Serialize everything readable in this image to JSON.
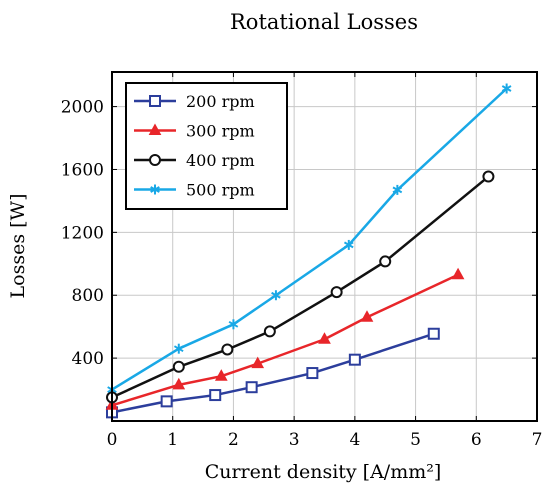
{
  "chart_data": {
    "type": "line",
    "title": "Rotational Losses",
    "xlabel": "Current density [A/mm²]",
    "ylabel": "Losses [W]",
    "xlim": [
      0,
      7
    ],
    "ylim": [
      0,
      2220
    ],
    "xticks": [
      0,
      1,
      2,
      3,
      4,
      5,
      6,
      7
    ],
    "yticks": [
      400,
      800,
      1200,
      1600,
      2000
    ],
    "grid": true,
    "legend_position": "top-left",
    "series": [
      {
        "name": "200 rpm",
        "color": "#2c3e9c",
        "marker": "square",
        "points": [
          [
            0,
            55
          ],
          [
            0.9,
            125
          ],
          [
            1.7,
            165
          ],
          [
            2.3,
            215
          ],
          [
            3.3,
            305
          ],
          [
            4.0,
            390
          ],
          [
            5.3,
            555
          ]
        ]
      },
      {
        "name": "300 rpm",
        "color": "#e8262a",
        "marker": "triangle",
        "points": [
          [
            0,
            100
          ],
          [
            1.1,
            230
          ],
          [
            1.8,
            285
          ],
          [
            2.4,
            365
          ],
          [
            3.5,
            520
          ],
          [
            4.2,
            660
          ],
          [
            5.7,
            930
          ]
        ]
      },
      {
        "name": "400 rpm",
        "color": "#111111",
        "marker": "circle",
        "points": [
          [
            0,
            150
          ],
          [
            1.1,
            345
          ],
          [
            1.9,
            455
          ],
          [
            2.6,
            570
          ],
          [
            3.7,
            820
          ],
          [
            4.5,
            1015
          ],
          [
            6.2,
            1555
          ]
        ]
      },
      {
        "name": "500 rpm",
        "color": "#19a8e6",
        "marker": "star",
        "points": [
          [
            0,
            200
          ],
          [
            1.1,
            460
          ],
          [
            2.0,
            615
          ],
          [
            2.7,
            800
          ],
          [
            3.9,
            1120
          ],
          [
            4.7,
            1470
          ],
          [
            6.5,
            2115
          ]
        ]
      }
    ]
  }
}
